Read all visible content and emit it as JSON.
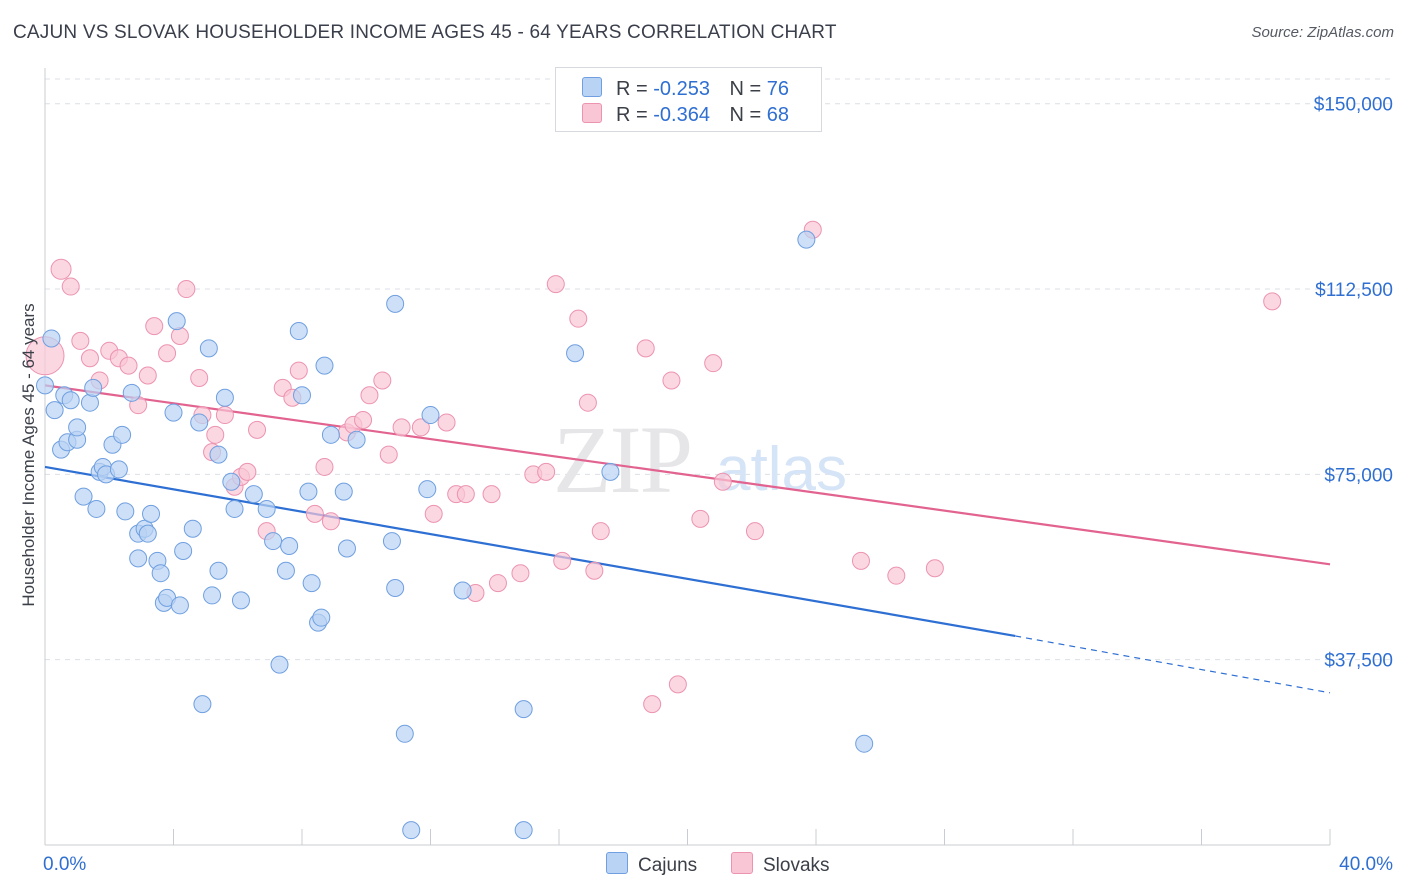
{
  "header": {
    "title": "CAJUN VS SLOVAK HOUSEHOLDER INCOME AGES 45 - 64 YEARS CORRELATION CHART",
    "source": "Source: ZipAtlas.com"
  },
  "watermark": "ZIPatlas",
  "legend": {
    "items": [
      {
        "r_label": "R =",
        "r_value": "-0.253",
        "n_label": "N =",
        "n_value": "76"
      },
      {
        "r_label": "R =",
        "r_value": "-0.364",
        "n_label": "N =",
        "n_value": "68"
      }
    ]
  },
  "bottom_legend": {
    "cajuns": "Cajuns",
    "slovaks": "Slovaks"
  },
  "colors": {
    "cajun_fill": "#b9d3f4",
    "cajun_stroke": "#6f9fe0",
    "cajun_line": "#2e6fd3",
    "slovak_fill": "#f9c6d6",
    "slovak_stroke": "#ec93b0",
    "slovak_line": "#e2638f",
    "tick_label": "#2f6fd1",
    "grid": "#dcdfe4"
  },
  "chart_data": {
    "type": "scatter",
    "title": "CAJUN VS SLOVAK HOUSEHOLDER INCOME AGES 45 - 64 YEARS CORRELATION CHART",
    "xlabel": "",
    "ylabel": "Householder Income Ages 45 - 64 years",
    "xlim": [
      0,
      40
    ],
    "ylim": [
      0,
      155000
    ],
    "x_tick_labels": [
      "0.0%",
      "40.0%"
    ],
    "y_ticks": [
      37500,
      75000,
      112500,
      150000
    ],
    "y_tick_labels": [
      "$37,500",
      "$75,000",
      "$112,500",
      "$150,000"
    ],
    "grid": true,
    "legend_position": "top-center",
    "series": [
      {
        "name": "Cajuns",
        "r": -0.253,
        "n": 76,
        "trend": {
          "x0": 0,
          "y0": 76500,
          "x1": 30.2,
          "y1": 42300,
          "dash_to_x": 40,
          "dash_to_y": 30800
        },
        "points": [
          [
            0.0,
            93000
          ],
          [
            0.2,
            102500
          ],
          [
            0.3,
            88000
          ],
          [
            0.5,
            80000
          ],
          [
            0.6,
            91000
          ],
          [
            0.7,
            81500
          ],
          [
            0.8,
            90000
          ],
          [
            1.0,
            82000
          ],
          [
            1.0,
            84500
          ],
          [
            1.2,
            70500
          ],
          [
            1.4,
            89500
          ],
          [
            1.5,
            92500
          ],
          [
            1.6,
            68000
          ],
          [
            1.7,
            75500
          ],
          [
            1.8,
            76500
          ],
          [
            1.9,
            75000
          ],
          [
            2.1,
            81000
          ],
          [
            2.3,
            76000
          ],
          [
            2.4,
            83000
          ],
          [
            2.5,
            67500
          ],
          [
            2.7,
            91500
          ],
          [
            2.9,
            58000
          ],
          [
            2.9,
            63000
          ],
          [
            3.1,
            64000
          ],
          [
            3.2,
            63000
          ],
          [
            3.3,
            67000
          ],
          [
            3.5,
            57500
          ],
          [
            3.6,
            55000
          ],
          [
            3.7,
            49000
          ],
          [
            3.8,
            50000
          ],
          [
            4.0,
            87500
          ],
          [
            4.1,
            106000
          ],
          [
            4.2,
            48500
          ],
          [
            4.3,
            59500
          ],
          [
            4.6,
            64000
          ],
          [
            4.8,
            85500
          ],
          [
            4.9,
            28500
          ],
          [
            5.1,
            100500
          ],
          [
            5.2,
            50500
          ],
          [
            5.4,
            79000
          ],
          [
            5.4,
            55500
          ],
          [
            5.6,
            90500
          ],
          [
            5.8,
            73500
          ],
          [
            5.9,
            68000
          ],
          [
            6.1,
            49500
          ],
          [
            6.5,
            71000
          ],
          [
            6.9,
            68000
          ],
          [
            7.1,
            61500
          ],
          [
            7.3,
            36500
          ],
          [
            7.5,
            55500
          ],
          [
            7.6,
            60500
          ],
          [
            7.9,
            104000
          ],
          [
            8.0,
            91000
          ],
          [
            8.2,
            71500
          ],
          [
            8.3,
            53000
          ],
          [
            8.5,
            45000
          ],
          [
            8.6,
            46000
          ],
          [
            8.7,
            97000
          ],
          [
            8.9,
            83000
          ],
          [
            9.3,
            71500
          ],
          [
            9.4,
            60000
          ],
          [
            9.7,
            82000
          ],
          [
            10.8,
            61500
          ],
          [
            10.9,
            52000
          ],
          [
            10.9,
            109500
          ],
          [
            11.2,
            22500
          ],
          [
            11.4,
            3000
          ],
          [
            11.9,
            72000
          ],
          [
            12.0,
            87000
          ],
          [
            13.0,
            51500
          ],
          [
            14.9,
            27500
          ],
          [
            14.9,
            3000
          ],
          [
            16.5,
            99500
          ],
          [
            17.6,
            75500
          ],
          [
            23.7,
            122500
          ],
          [
            25.5,
            20500
          ]
        ]
      },
      {
        "name": "Slovaks",
        "r": -0.364,
        "n": 68,
        "trend": {
          "x0": 0,
          "y0": 93000,
          "x1": 40,
          "y1": 56800
        },
        "points": [
          [
            0.0,
            99000
          ],
          [
            0.5,
            116500
          ],
          [
            0.8,
            113000
          ],
          [
            1.1,
            102000
          ],
          [
            1.4,
            98500
          ],
          [
            1.7,
            94000
          ],
          [
            2.0,
            100000
          ],
          [
            2.3,
            98500
          ],
          [
            2.6,
            97000
          ],
          [
            2.9,
            89000
          ],
          [
            3.2,
            95000
          ],
          [
            3.4,
            105000
          ],
          [
            3.8,
            99500
          ],
          [
            4.2,
            103000
          ],
          [
            4.4,
            112500
          ],
          [
            4.8,
            94500
          ],
          [
            4.9,
            87000
          ],
          [
            5.2,
            79500
          ],
          [
            5.3,
            83000
          ],
          [
            5.6,
            87000
          ],
          [
            5.9,
            72500
          ],
          [
            6.1,
            74500
          ],
          [
            6.3,
            75500
          ],
          [
            6.6,
            84000
          ],
          [
            6.9,
            63500
          ],
          [
            7.4,
            92500
          ],
          [
            7.7,
            90500
          ],
          [
            7.9,
            96000
          ],
          [
            8.4,
            67000
          ],
          [
            8.7,
            76500
          ],
          [
            8.9,
            65500
          ],
          [
            9.4,
            83500
          ],
          [
            9.6,
            85000
          ],
          [
            9.9,
            86000
          ],
          [
            10.1,
            91000
          ],
          [
            10.5,
            94000
          ],
          [
            10.7,
            79000
          ],
          [
            11.1,
            84500
          ],
          [
            11.7,
            84500
          ],
          [
            12.1,
            67000
          ],
          [
            12.5,
            85500
          ],
          [
            12.8,
            71000
          ],
          [
            13.1,
            71000
          ],
          [
            13.4,
            51000
          ],
          [
            13.9,
            71000
          ],
          [
            14.1,
            53000
          ],
          [
            14.8,
            55000
          ],
          [
            15.2,
            75000
          ],
          [
            15.6,
            75500
          ],
          [
            15.9,
            113500
          ],
          [
            16.1,
            57500
          ],
          [
            16.6,
            106500
          ],
          [
            17.1,
            55500
          ],
          [
            17.3,
            63500
          ],
          [
            18.7,
            100500
          ],
          [
            18.9,
            28500
          ],
          [
            19.5,
            94000
          ],
          [
            19.7,
            32500
          ],
          [
            20.4,
            66000
          ],
          [
            20.8,
            97500
          ],
          [
            21.1,
            73500
          ],
          [
            22.1,
            63500
          ],
          [
            23.9,
            124500
          ],
          [
            25.4,
            57500
          ],
          [
            26.5,
            54500
          ],
          [
            27.7,
            56000
          ],
          [
            38.2,
            110000
          ],
          [
            16.9,
            89500
          ]
        ]
      }
    ]
  }
}
